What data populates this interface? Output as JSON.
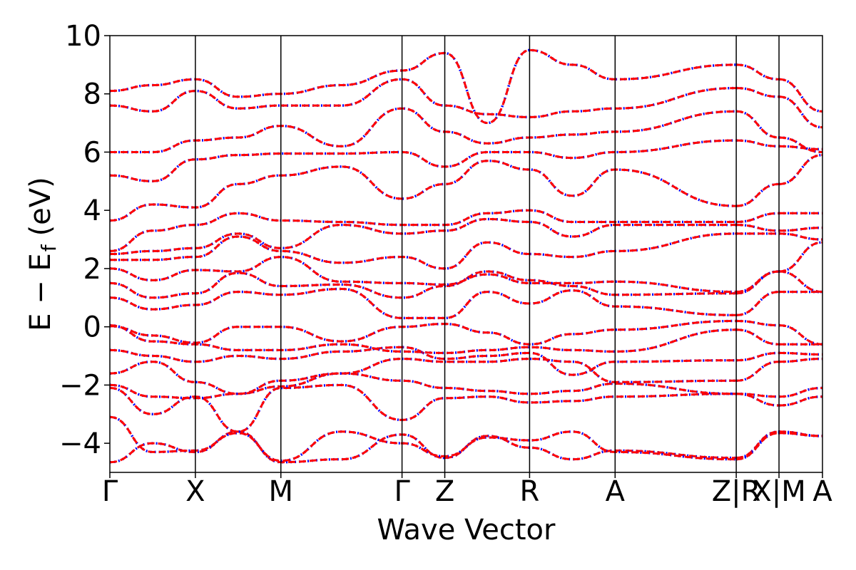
{
  "chart_data": {
    "type": "line",
    "title": "",
    "xlabel": "Wave Vector",
    "ylabel": "E − E",
    "ylabel_sub": "f",
    "ylabel_unit": "(eV)",
    "ylim": [
      -5,
      10
    ],
    "yticks": [
      -4,
      -2,
      0,
      2,
      4,
      6,
      8,
      10
    ],
    "ytick_labels": [
      "−4",
      "−2",
      "0",
      "2",
      "4",
      "6",
      "8",
      "10"
    ],
    "xlim": [
      0,
      1
    ],
    "kpoints": [
      {
        "label": "Γ",
        "x": 0.0
      },
      {
        "label": "X",
        "x": 0.12
      },
      {
        "label": "M",
        "x": 0.24
      },
      {
        "label": "Γ",
        "x": 0.41
      },
      {
        "label": "Z",
        "x": 0.47
      },
      {
        "label": "R",
        "x": 0.589
      },
      {
        "label": "A",
        "x": 0.709
      },
      {
        "label": "Z|R",
        "x": 0.879
      },
      {
        "label": "X|M",
        "x": 0.939
      },
      {
        "label": "A",
        "x": 1.0
      }
    ],
    "segments": [
      [
        0.0,
        0.879
      ],
      [
        0.879,
        0.939
      ],
      [
        0.939,
        1.0
      ]
    ],
    "grid": false,
    "series_styles": [
      {
        "color": "#0000ff",
        "style": "dotted"
      },
      {
        "color": "#ff0000",
        "style": "dashed"
      }
    ],
    "bands": [
      {
        "y": [
          -4.65,
          -4.0,
          -4.3,
          -3.6,
          -4.65,
          -4.55,
          -3.7,
          -4.5,
          -3.75,
          -4.15,
          -4.55,
          -4.25,
          -4.5,
          -3.6,
          -3.75
        ]
      },
      {
        "y": [
          -3.1,
          -4.3,
          -4.25,
          -3.65,
          -4.6,
          -3.6,
          -4.0,
          -4.45,
          -3.8,
          -3.9,
          -3.6,
          -4.3,
          -4.55,
          -3.65,
          -3.75
        ]
      },
      {
        "y": [
          -2.1,
          -3.0,
          -2.4,
          -3.6,
          -2.1,
          -2.0,
          -3.2,
          -2.45,
          -2.4,
          -2.6,
          -2.55,
          -2.4,
          -2.3,
          -2.7,
          -2.4
        ]
      },
      {
        "y": [
          -2.0,
          -2.4,
          -2.45,
          -2.3,
          -2.05,
          -1.6,
          -1.85,
          -2.1,
          -2.2,
          -2.3,
          -2.2,
          -1.95,
          -2.3,
          -2.4,
          -2.1
        ]
      },
      {
        "y": [
          -1.6,
          -1.2,
          -1.9,
          -2.3,
          -1.85,
          -1.6,
          -1.1,
          -1.2,
          -1.2,
          -1.1,
          -1.2,
          -1.9,
          -1.85,
          -1.2,
          -1.1
        ]
      },
      {
        "y": [
          -0.8,
          -1.0,
          -1.2,
          -1.0,
          -1.1,
          -0.85,
          -0.7,
          -1.1,
          -1.0,
          -0.9,
          -1.65,
          -1.2,
          -1.15,
          -0.9,
          -0.95
        ]
      },
      {
        "y": [
          0.05,
          -0.5,
          -0.6,
          -0.8,
          -0.8,
          -0.6,
          -0.85,
          -0.9,
          -0.8,
          -0.7,
          -0.8,
          -0.85,
          -0.1,
          -0.6,
          -0.6
        ]
      },
      {
        "y": [
          0.02,
          -0.3,
          -0.55,
          0.0,
          0.0,
          -0.5,
          0.0,
          0.1,
          -0.2,
          -0.6,
          -0.25,
          -0.1,
          0.2,
          0.05,
          -0.6
        ]
      },
      {
        "y": [
          1.0,
          0.6,
          0.75,
          1.2,
          1.1,
          1.3,
          0.3,
          0.3,
          1.2,
          0.8,
          1.25,
          0.7,
          0.4,
          1.2,
          1.2
        ]
      },
      {
        "y": [
          1.5,
          1.0,
          1.15,
          1.85,
          1.4,
          1.45,
          1.0,
          1.4,
          1.9,
          1.6,
          1.4,
          1.1,
          1.15,
          1.9,
          1.2
        ]
      },
      {
        "y": [
          2.0,
          1.6,
          1.95,
          1.9,
          2.4,
          1.55,
          1.5,
          1.45,
          1.8,
          1.5,
          1.5,
          1.55,
          1.2,
          1.9,
          2.9
        ]
      },
      {
        "y": [
          2.3,
          2.3,
          2.4,
          3.1,
          2.6,
          2.2,
          2.4,
          2.0,
          2.9,
          2.5,
          2.4,
          2.6,
          3.2,
          3.2,
          3.0
        ]
      },
      {
        "y": [
          2.5,
          2.6,
          2.7,
          3.2,
          2.7,
          3.5,
          3.2,
          3.3,
          3.7,
          3.6,
          3.1,
          3.5,
          3.5,
          3.3,
          3.4
        ]
      },
      {
        "y": [
          2.6,
          3.3,
          3.5,
          3.9,
          3.65,
          3.6,
          3.5,
          3.5,
          3.9,
          4.0,
          3.6,
          3.6,
          3.6,
          3.9,
          3.9
        ]
      },
      {
        "y": [
          3.65,
          4.2,
          4.1,
          4.9,
          5.2,
          5.5,
          4.4,
          4.9,
          5.7,
          5.4,
          4.5,
          5.4,
          4.15,
          4.9,
          5.9
        ]
      },
      {
        "y": [
          5.2,
          5.0,
          5.75,
          5.9,
          5.95,
          5.95,
          6.0,
          5.5,
          6.0,
          6.0,
          5.8,
          6.0,
          6.4,
          6.2,
          6.1
        ]
      },
      {
        "y": [
          6.0,
          6.0,
          6.4,
          6.5,
          6.9,
          6.2,
          7.5,
          6.7,
          6.3,
          6.5,
          6.6,
          6.7,
          7.4,
          6.5,
          6.0
        ]
      },
      {
        "y": [
          7.6,
          7.4,
          8.1,
          7.5,
          7.6,
          7.6,
          8.5,
          7.6,
          7.3,
          7.2,
          7.4,
          7.5,
          8.2,
          7.9,
          6.85
        ]
      },
      {
        "y": [
          8.1,
          8.3,
          8.5,
          7.9,
          8.0,
          8.3,
          8.8,
          9.4,
          7.0,
          9.5,
          9.0,
          8.5,
          9.0,
          8.5,
          7.4
        ]
      }
    ]
  }
}
